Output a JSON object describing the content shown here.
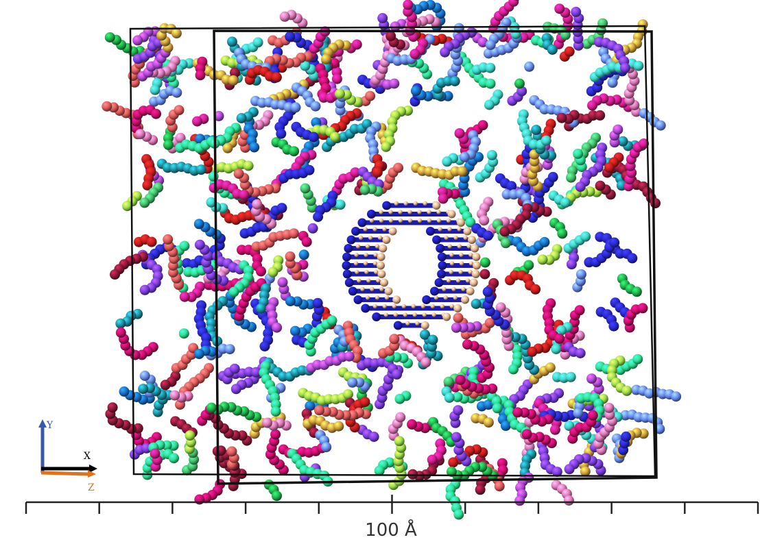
{
  "axes": {
    "y": "Y",
    "x": "X",
    "z": "Z"
  },
  "scale_bar": {
    "label": "100 Å"
  }
}
